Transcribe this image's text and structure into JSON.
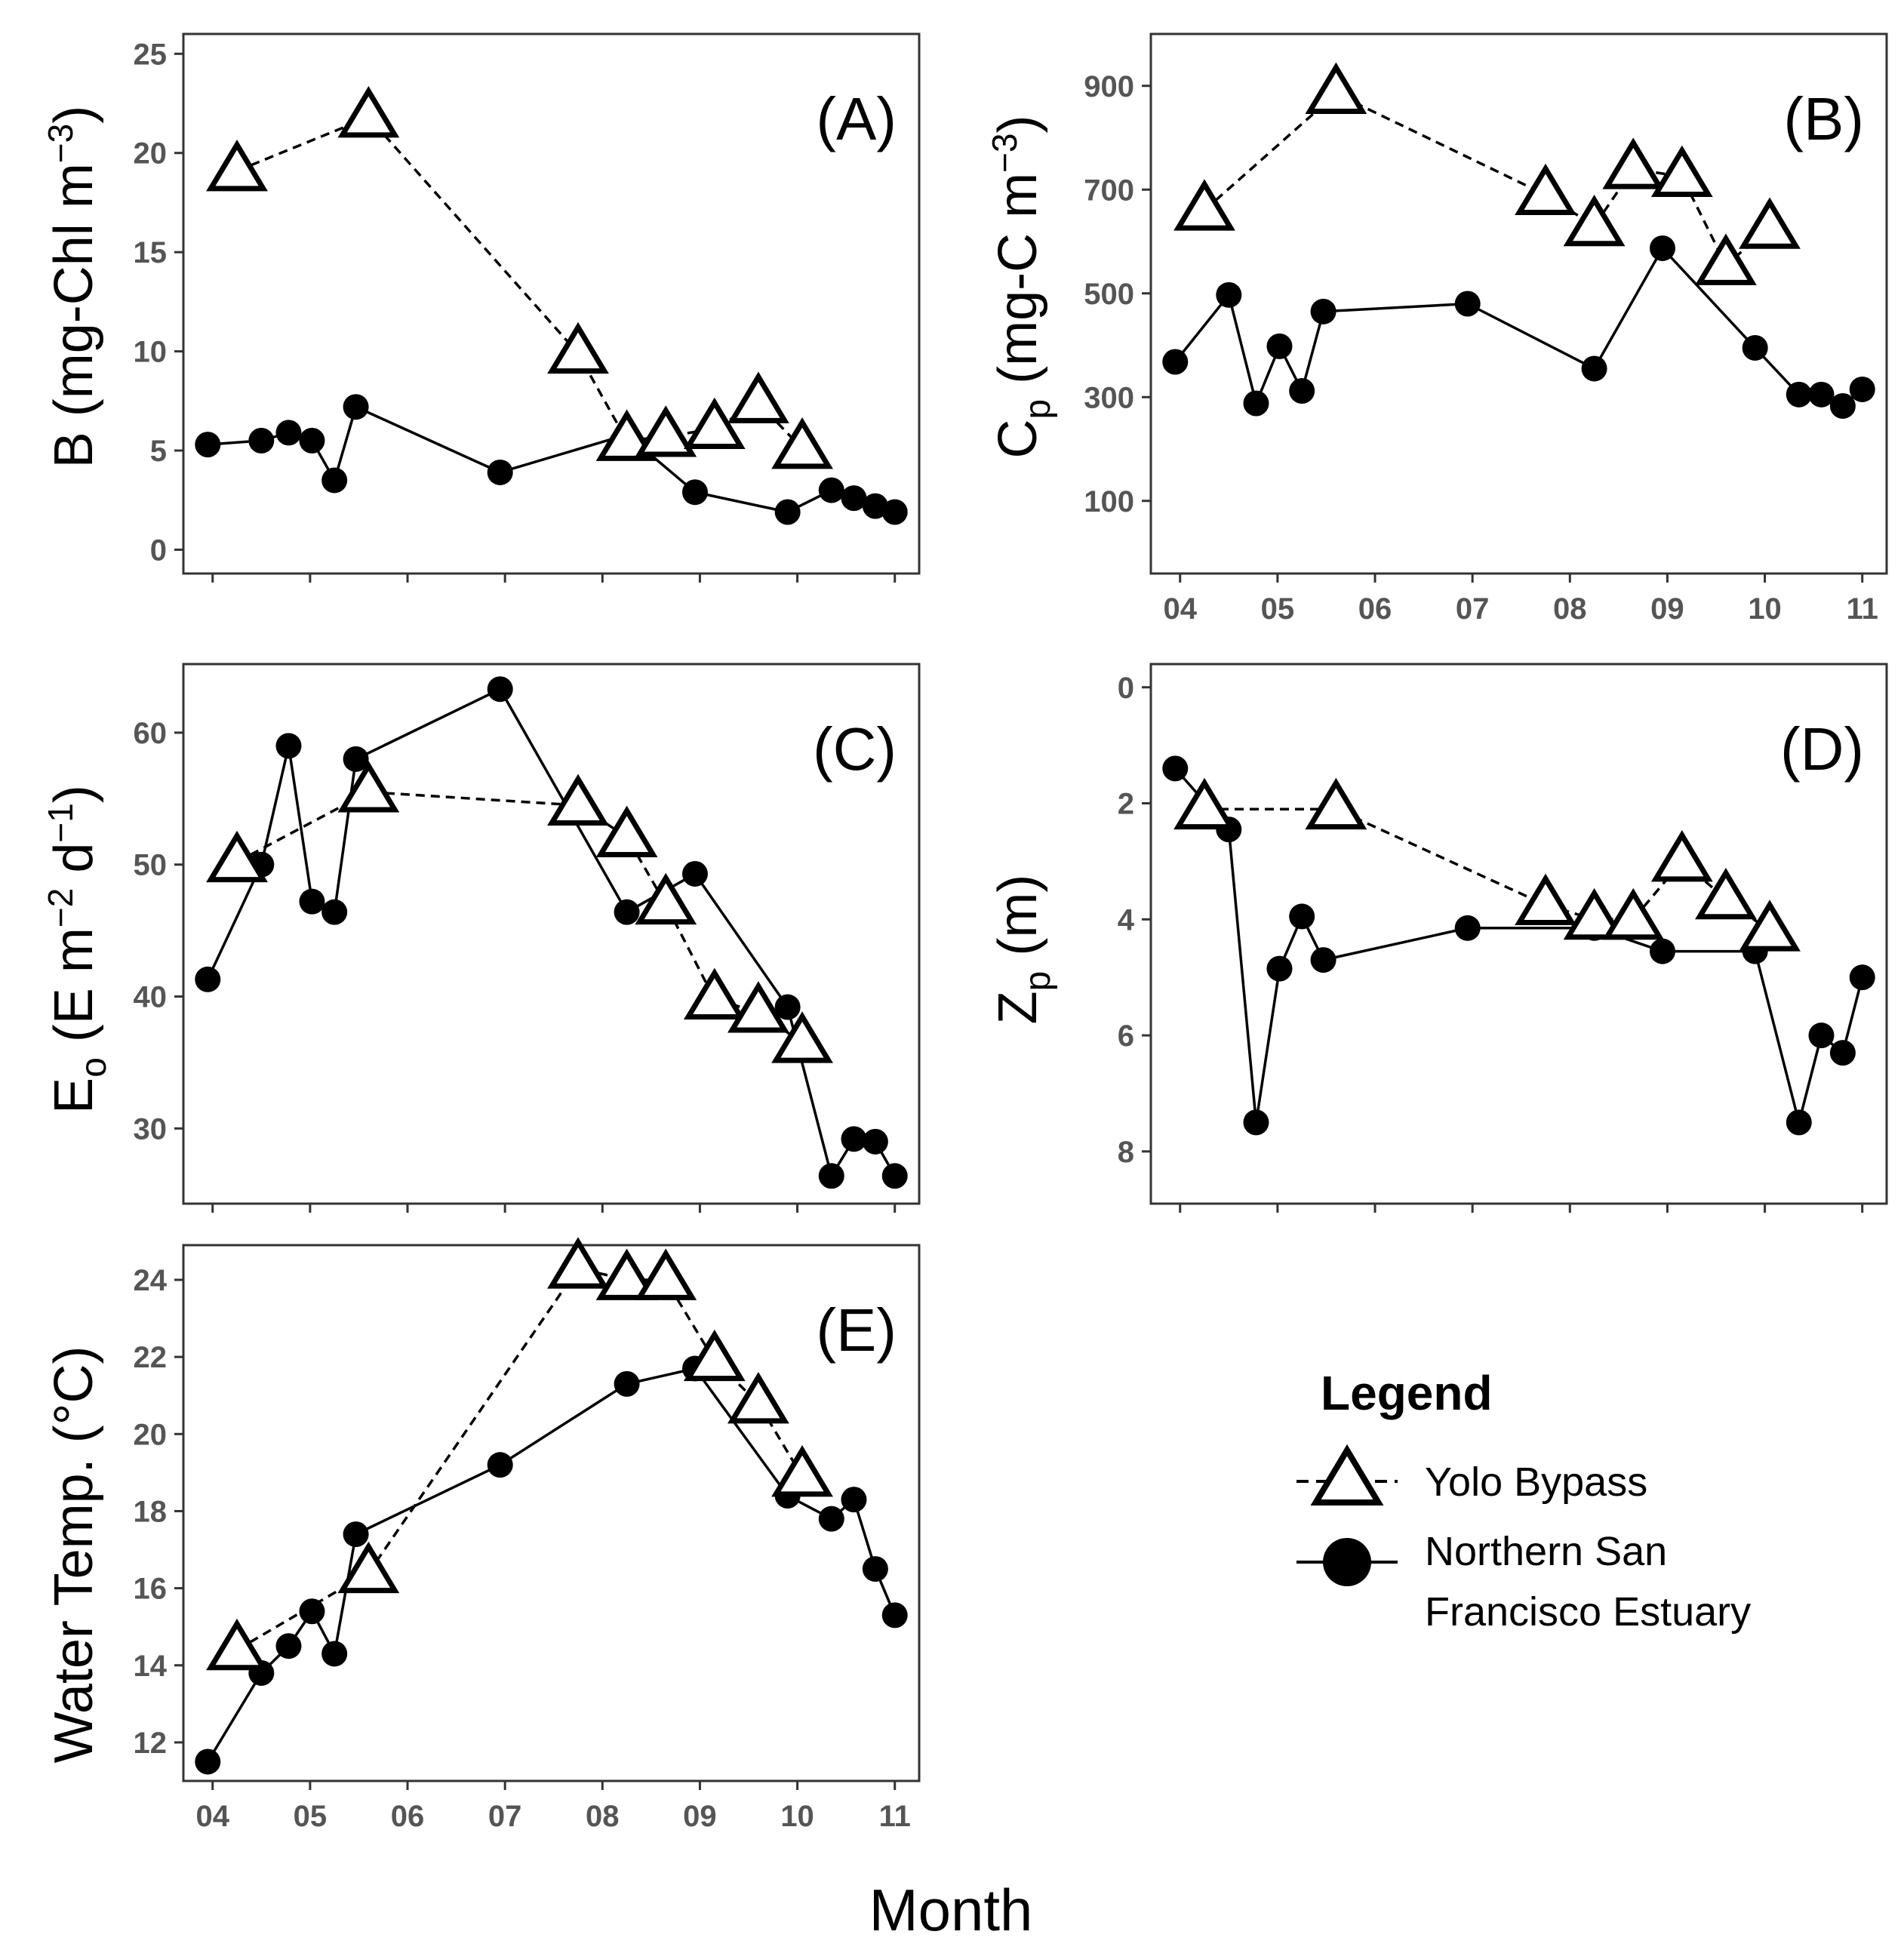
{
  "chart_data": [
    {
      "type": "line",
      "panel_label": "(A)",
      "ylabel": "B (mg-Chl m⁻³)",
      "ylim": [
        -1.2,
        26
      ],
      "yticks": [
        0,
        5,
        10,
        15,
        20,
        25
      ],
      "show_x_tick_labels": false,
      "series": [
        {
          "name": "Yolo Bypass",
          "points": [
            [
              4.25,
              19.1
            ],
            [
              5.6,
              21.8
            ],
            [
              7.75,
              9.9
            ],
            [
              8.25,
              5.5
            ],
            [
              8.65,
              5.7
            ],
            [
              9.15,
              6.1
            ],
            [
              9.6,
              7.4
            ],
            [
              10.05,
              5.1
            ]
          ]
        },
        {
          "name": "Northern San Francisco Estuary",
          "points": [
            [
              3.95,
              5.3
            ],
            [
              4.5,
              5.5
            ],
            [
              4.78,
              5.9
            ],
            [
              5.02,
              5.5
            ],
            [
              5.25,
              3.5
            ],
            [
              5.47,
              7.2
            ],
            [
              6.95,
              3.9
            ],
            [
              8.25,
              5.8
            ],
            [
              8.95,
              2.9
            ],
            [
              9.9,
              1.9
            ],
            [
              10.35,
              3.0
            ],
            [
              10.58,
              2.6
            ],
            [
              10.8,
              2.2
            ],
            [
              11.0,
              1.9
            ]
          ]
        }
      ]
    },
    {
      "type": "line",
      "panel_label": "(B)",
      "ylabel": "Cp (mg-C m⁻³)",
      "ylim": [
        -40,
        1000
      ],
      "yticks": [
        100,
        300,
        500,
        700,
        900
      ],
      "show_x_tick_labels": true,
      "series": [
        {
          "name": "Yolo Bypass",
          "points": [
            [
              4.25,
              660
            ],
            [
              5.6,
              885
            ],
            [
              7.75,
              690
            ],
            [
              8.25,
              630
            ],
            [
              8.65,
              740
            ],
            [
              9.15,
              725
            ],
            [
              9.6,
              555
            ],
            [
              10.05,
              625
            ]
          ]
        },
        {
          "name": "Northern San Francisco Estuary",
          "points": [
            [
              3.95,
              368
            ],
            [
              4.5,
              497
            ],
            [
              4.78,
              288
            ],
            [
              5.02,
              398
            ],
            [
              5.25,
              312
            ],
            [
              5.47,
              465
            ],
            [
              6.95,
              480
            ],
            [
              8.25,
              355
            ],
            [
              8.95,
              587
            ],
            [
              9.9,
              395
            ],
            [
              10.35,
              305
            ],
            [
              10.58,
              305
            ],
            [
              10.8,
              283
            ],
            [
              11.0,
              315
            ]
          ]
        }
      ]
    },
    {
      "type": "line",
      "panel_label": "(C)",
      "ylabel": "Eo (E m⁻² d⁻¹)",
      "ylim": [
        24.3,
        65.2
      ],
      "yticks": [
        30,
        40,
        50,
        60
      ],
      "show_x_tick_labels": false,
      "series": [
        {
          "name": "Yolo Bypass",
          "points": [
            [
              4.25,
              50.2
            ],
            [
              5.6,
              55.5
            ],
            [
              7.75,
              54.5
            ],
            [
              8.25,
              52.1
            ],
            [
              8.65,
              47.0
            ],
            [
              9.15,
              39.8
            ],
            [
              9.6,
              38.8
            ],
            [
              10.05,
              36.5
            ]
          ]
        },
        {
          "name": "Northern San Francisco Estuary",
          "points": [
            [
              3.95,
              41.3
            ],
            [
              4.5,
              50.0
            ],
            [
              4.78,
              59.0
            ],
            [
              5.02,
              47.2
            ],
            [
              5.25,
              46.4
            ],
            [
              5.47,
              58.0
            ],
            [
              6.95,
              63.3
            ],
            [
              8.25,
              46.4
            ],
            [
              8.95,
              49.3
            ],
            [
              9.9,
              39.2
            ],
            [
              10.35,
              26.4
            ],
            [
              10.58,
              29.2
            ],
            [
              10.8,
              29.0
            ],
            [
              11.0,
              26.4
            ]
          ]
        }
      ]
    },
    {
      "type": "line",
      "panel_label": "(D)",
      "ylabel": "Zp (m)",
      "ylim": [
        -0.4,
        8.9
      ],
      "y_inverted": true,
      "yticks": [
        0,
        2,
        4,
        6,
        8
      ],
      "show_x_tick_labels": false,
      "series": [
        {
          "name": "Yolo Bypass",
          "points": [
            [
              4.25,
              2.1
            ],
            [
              5.6,
              2.1
            ],
            [
              7.75,
              3.75
            ],
            [
              8.25,
              4.0
            ],
            [
              8.65,
              4.0
            ],
            [
              9.15,
              3.0
            ],
            [
              9.6,
              3.65
            ],
            [
              10.05,
              4.2
            ]
          ]
        },
        {
          "name": "Northern San Francisco Estuary",
          "points": [
            [
              3.95,
              1.4
            ],
            [
              4.5,
              2.45
            ],
            [
              4.78,
              7.5
            ],
            [
              5.02,
              4.85
            ],
            [
              5.25,
              3.95
            ],
            [
              5.47,
              4.7
            ],
            [
              6.95,
              4.15
            ],
            [
              8.25,
              4.15
            ],
            [
              8.95,
              4.55
            ],
            [
              9.9,
              4.55
            ],
            [
              10.35,
              7.5
            ],
            [
              10.58,
              6.0
            ],
            [
              10.8,
              6.3
            ],
            [
              11.0,
              5.0
            ]
          ]
        }
      ]
    },
    {
      "type": "line",
      "panel_label": "(E)",
      "ylabel": "Water Temp. (°C)",
      "ylim": [
        11.0,
        24.9
      ],
      "yticks": [
        12,
        14,
        16,
        18,
        20,
        22,
        24
      ],
      "show_x_tick_labels": true,
      "series": [
        {
          "name": "Yolo Bypass",
          "points": [
            [
              4.25,
              14.4
            ],
            [
              5.6,
              16.4
            ],
            [
              7.75,
              24.3
            ],
            [
              8.25,
              24.0
            ],
            [
              8.65,
              24.0
            ],
            [
              9.15,
              21.9
            ],
            [
              9.6,
              20.8
            ],
            [
              10.05,
              18.9
            ]
          ]
        },
        {
          "name": "Northern San Francisco Estuary",
          "points": [
            [
              3.95,
              11.5
            ],
            [
              4.5,
              13.8
            ],
            [
              4.78,
              14.5
            ],
            [
              5.02,
              15.4
            ],
            [
              5.25,
              14.3
            ],
            [
              5.47,
              17.4
            ],
            [
              6.95,
              19.2
            ],
            [
              8.25,
              21.3
            ],
            [
              8.95,
              21.7
            ],
            [
              9.9,
              18.4
            ],
            [
              10.35,
              17.8
            ],
            [
              10.58,
              18.3
            ],
            [
              10.8,
              16.5
            ],
            [
              11.0,
              15.3
            ]
          ]
        }
      ]
    }
  ],
  "x_axis": {
    "xlim": [
      3.7,
      11.25
    ],
    "ticks": [
      4,
      5,
      6,
      7,
      8,
      9,
      10,
      11
    ],
    "tick_labels": [
      "04",
      "05",
      "06",
      "07",
      "08",
      "09",
      "10",
      "11"
    ],
    "title": "Month"
  },
  "legend": {
    "title": "Legend",
    "items": [
      {
        "name": "Yolo Bypass",
        "line": [
          "Yolo Bypass"
        ],
        "marker": "open-triangle",
        "line_style": "dashed"
      },
      {
        "name": "Northern San Francisco Estuary",
        "line": [
          "Northern San",
          "Francisco Estuary"
        ],
        "marker": "filled-circle",
        "line_style": "solid"
      }
    ]
  },
  "colors": {
    "ink": "#000000",
    "tick_label": "#555555",
    "panel_border": "#333333",
    "background": "#ffffff"
  }
}
